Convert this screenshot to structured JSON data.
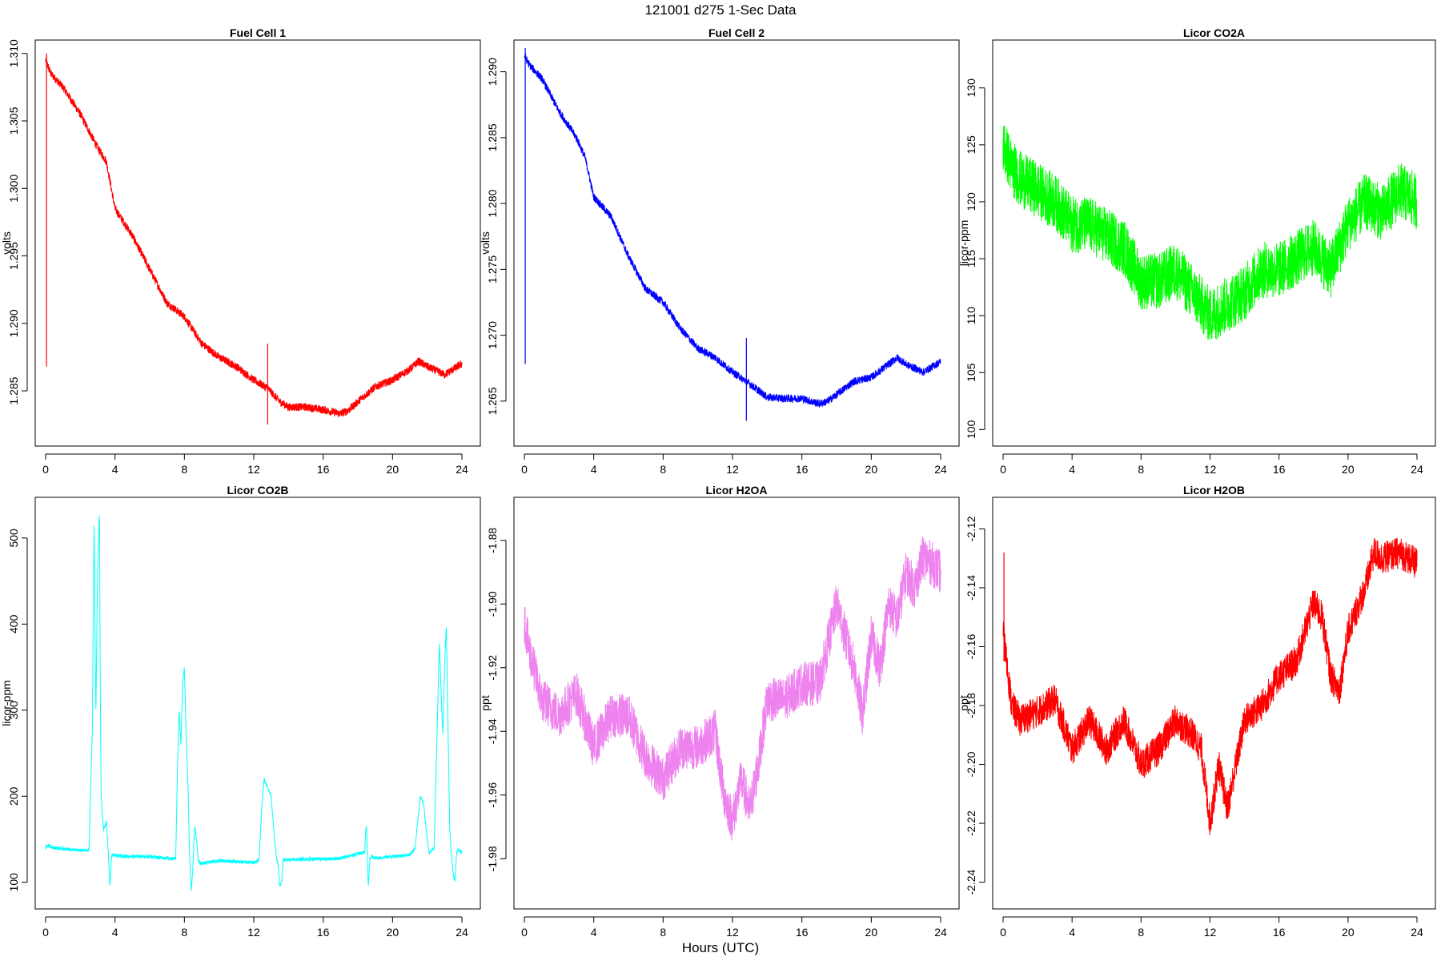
{
  "page": {
    "title": "121001   d275   1-Sec Data",
    "xlabel": "Hours (UTC)"
  },
  "chart_data": [
    {
      "type": "line",
      "title": "Fuel Cell 1",
      "ylabel": "volts",
      "color": "#ff0000",
      "xlim": [
        0,
        24
      ],
      "ylim": [
        1.2818,
        1.3104
      ],
      "xticks": [
        0,
        4,
        8,
        12,
        16,
        20,
        24
      ],
      "yticks": [
        1.285,
        1.29,
        1.295,
        1.3,
        1.305,
        1.31
      ],
      "ytick_labels": [
        "1.285",
        "1.290",
        "1.295",
        "1.300",
        "1.305",
        "1.310"
      ],
      "noise": 0.0006,
      "series": [
        {
          "x": [
            0,
            0.3,
            1,
            2,
            3,
            3.5,
            4,
            5,
            6,
            7,
            8,
            9,
            10,
            11,
            12,
            12.8,
            13.5,
            14,
            15,
            16,
            17,
            17.5,
            18,
            19,
            20,
            21,
            21.5,
            22,
            23,
            24
          ],
          "y": [
            1.3095,
            1.3085,
            1.3075,
            1.3055,
            1.303,
            1.302,
            1.2985,
            1.2965,
            1.294,
            1.2915,
            1.2905,
            1.2885,
            1.2875,
            1.2868,
            1.2858,
            1.2852,
            1.2842,
            1.2838,
            1.2838,
            1.2836,
            1.2833,
            1.2836,
            1.2842,
            1.2853,
            1.2858,
            1.2866,
            1.2872,
            1.2868,
            1.2862,
            1.287
          ]
        }
      ],
      "spikes": [
        {
          "x": 0.05,
          "ymin": 1.2868,
          "ymax": 1.31
        },
        {
          "x": 12.8,
          "ymin": 1.2825,
          "ymax": 1.2885
        }
      ]
    },
    {
      "type": "line",
      "title": "Fuel Cell 2",
      "ylabel": "volts",
      "color": "#0000ff",
      "xlim": [
        0,
        24
      ],
      "ylim": [
        1.2625,
        1.2918
      ],
      "xticks": [
        0,
        4,
        8,
        12,
        16,
        20,
        24
      ],
      "yticks": [
        1.265,
        1.27,
        1.275,
        1.28,
        1.285,
        1.29
      ],
      "ytick_labels": [
        "1.265",
        "1.270",
        "1.275",
        "1.280",
        "1.285",
        "1.290"
      ],
      "noise": 0.0006,
      "series": [
        {
          "x": [
            0,
            0.3,
            1,
            2,
            3,
            3.5,
            4,
            5,
            6,
            7,
            8,
            9,
            10,
            11,
            12,
            12.8,
            13.5,
            14,
            15,
            16,
            17,
            17.5,
            18,
            19,
            20,
            21,
            21.5,
            22,
            23,
            24
          ],
          "y": [
            1.2912,
            1.2905,
            1.2895,
            1.287,
            1.285,
            1.2835,
            1.2805,
            1.279,
            1.276,
            1.2735,
            1.2725,
            1.2705,
            1.269,
            1.2683,
            1.2672,
            1.2665,
            1.2658,
            1.2653,
            1.2652,
            1.2652,
            1.2648,
            1.265,
            1.2655,
            1.2665,
            1.2668,
            1.2678,
            1.2683,
            1.2678,
            1.2672,
            1.268
          ]
        }
      ],
      "spikes": [
        {
          "x": 0.05,
          "ymin": 1.2678,
          "ymax": 1.2918
        },
        {
          "x": 12.8,
          "ymin": 1.2635,
          "ymax": 1.2698
        }
      ]
    },
    {
      "type": "line",
      "title": "Licor CO2A",
      "ylabel": "licor-ppm",
      "color": "#00ff00",
      "xlim": [
        0,
        24
      ],
      "ylim": [
        99.6,
        133.5
      ],
      "xticks": [
        0,
        4,
        8,
        12,
        16,
        20,
        24
      ],
      "yticks": [
        100,
        105,
        110,
        115,
        120,
        125,
        130
      ],
      "ytick_labels": [
        "100",
        "105",
        "110",
        "115",
        "120",
        "125",
        "130"
      ],
      "noise": 5,
      "series": [
        {
          "x": [
            0,
            0.5,
            1,
            2,
            3,
            4,
            5,
            6,
            7,
            8,
            9,
            10,
            11,
            12,
            13,
            14,
            15,
            16,
            17,
            18,
            19,
            20,
            21,
            22,
            23,
            24
          ],
          "y": [
            125,
            123,
            122,
            121,
            120,
            118,
            118,
            117,
            116,
            113,
            113,
            114,
            112,
            110,
            111,
            112,
            114,
            114,
            115,
            116,
            114,
            118,
            120,
            119,
            121,
            120
          ]
        }
      ]
    },
    {
      "type": "line",
      "title": "Licor CO2B",
      "ylabel": "licor-ppm",
      "color": "#00ffff",
      "xlim": [
        0,
        24
      ],
      "ylim": [
        83,
        538
      ],
      "xticks": [
        0,
        4,
        8,
        12,
        16,
        20,
        24
      ],
      "yticks": [
        100,
        200,
        300,
        400,
        500
      ],
      "ytick_labels": [
        "100",
        "200",
        "300",
        "400",
        "500"
      ],
      "noise": 4,
      "series": [
        {
          "x": [
            0,
            0.1,
            0.5,
            1,
            1.5,
            2,
            2.5,
            2.6,
            2.7,
            2.75,
            2.8,
            2.85,
            2.9,
            3.0,
            3.1,
            3.15,
            3.2,
            3.3,
            3.35,
            3.4,
            3.5,
            3.6,
            3.7,
            3.8,
            3.9,
            4.0,
            5,
            6,
            7,
            7.3,
            7.5,
            7.6,
            7.7,
            7.8,
            7.9,
            8.0,
            8.1,
            8.2,
            8.3,
            8.35,
            8.4,
            8.5,
            8.55,
            8.6,
            8.7,
            8.8,
            8.9,
            9,
            10,
            11,
            12,
            12.3,
            12.5,
            12.6,
            12.8,
            13.0,
            13.2,
            13.3,
            13.4,
            13.5,
            13.6,
            13.7,
            13.8,
            13.9,
            14.0,
            15,
            16,
            17,
            18,
            18.4,
            18.45,
            18.5,
            18.6,
            18.7,
            18.8,
            19,
            20,
            21,
            21.3,
            21.5,
            21.6,
            21.8,
            22.0,
            22.1,
            22.2,
            22.4,
            22.6,
            22.7,
            22.8,
            22.9,
            23.0,
            23.1,
            23.2,
            23.3,
            23.4,
            23.5,
            23.6,
            23.7,
            23.8,
            23.9,
            24
          ],
          "y": [
            140,
            143,
            140,
            139,
            138,
            137,
            137,
            210,
            280,
            430,
            520,
            380,
            300,
            470,
            530,
            330,
            200,
            170,
            160,
            165,
            170,
            140,
            95,
            130,
            132,
            131,
            130,
            130,
            128,
            127,
            128,
            230,
            300,
            260,
            330,
            350,
            270,
            220,
            130,
            110,
            90,
            120,
            150,
            165,
            150,
            125,
            122,
            122,
            125,
            124,
            123,
            126,
            200,
            220,
            210,
            200,
            150,
            130,
            120,
            95,
            100,
            125,
            127,
            126,
            126,
            127,
            127,
            128,
            133,
            135,
            160,
            165,
            95,
            128,
            130,
            128,
            130,
            132,
            140,
            180,
            200,
            190,
            150,
            135,
            136,
            140,
            300,
            380,
            320,
            270,
            350,
            400,
            280,
            160,
            130,
            110,
            100,
            135,
            138,
            136,
            135
          ]
        }
      ]
    },
    {
      "type": "line",
      "title": "Licor H2OA",
      "ylabel": "ppt",
      "color": "#ee82ee",
      "xlim": [
        0,
        24
      ],
      "ylim": [
        -1.992,
        -1.869
      ],
      "xticks": [
        0,
        4,
        8,
        12,
        16,
        20,
        24
      ],
      "yticks": [
        -1.98,
        -1.96,
        -1.94,
        -1.92,
        -1.9,
        -1.88
      ],
      "ytick_labels": [
        "-1.98",
        "-1.96",
        "-1.94",
        "-1.92",
        "-1.90",
        "-1.88"
      ],
      "noise": 0.014,
      "series": [
        {
          "x": [
            0,
            0.3,
            1,
            2,
            3,
            4,
            5,
            6,
            7,
            8,
            9,
            10,
            11,
            11.5,
            12,
            12.5,
            13,
            13.5,
            14,
            15,
            16,
            17,
            18,
            18.5,
            19,
            19.5,
            20,
            20.5,
            21,
            21.5,
            22,
            22.5,
            23,
            24
          ],
          "y": [
            -1.905,
            -1.915,
            -1.93,
            -1.935,
            -1.928,
            -1.945,
            -1.935,
            -1.935,
            -1.948,
            -1.955,
            -1.945,
            -1.945,
            -1.94,
            -1.96,
            -1.968,
            -1.955,
            -1.965,
            -1.95,
            -1.93,
            -1.93,
            -1.925,
            -1.925,
            -1.9,
            -1.91,
            -1.92,
            -1.935,
            -1.91,
            -1.92,
            -1.9,
            -1.905,
            -1.89,
            -1.895,
            -1.885,
            -1.89
          ]
        }
      ]
    },
    {
      "type": "line",
      "title": "Licor H2OB",
      "ylabel": "ppt",
      "color": "#ff0000",
      "xlim": [
        0,
        24
      ],
      "ylim": [
        -2.245,
        -2.112
      ],
      "xticks": [
        0,
        4,
        8,
        12,
        16,
        20,
        24
      ],
      "yticks": [
        -2.24,
        -2.22,
        -2.2,
        -2.18,
        -2.16,
        -2.14,
        -2.12
      ],
      "ytick_labels": [
        "-2.24",
        "-2.22",
        "-2.20",
        "-2.18",
        "-2.16",
        "-2.14",
        "-2.12"
      ],
      "noise": 0.011,
      "series": [
        {
          "x": [
            0,
            0.2,
            0.5,
            1,
            2,
            3,
            4,
            5,
            6,
            7,
            8,
            9,
            10,
            11,
            11.5,
            12,
            12.5,
            13,
            13.5,
            14,
            15,
            16,
            17,
            18,
            18.5,
            19,
            19.5,
            20,
            21,
            21.5,
            22,
            23,
            24
          ],
          "y": [
            -2.155,
            -2.165,
            -2.18,
            -2.185,
            -2.182,
            -2.178,
            -2.195,
            -2.185,
            -2.195,
            -2.185,
            -2.2,
            -2.195,
            -2.185,
            -2.19,
            -2.195,
            -2.22,
            -2.2,
            -2.215,
            -2.2,
            -2.185,
            -2.18,
            -2.17,
            -2.165,
            -2.145,
            -2.15,
            -2.17,
            -2.175,
            -2.155,
            -2.14,
            -2.128,
            -2.13,
            -2.128,
            -2.132
          ]
        }
      ],
      "spikes": [
        {
          "x": 0.05,
          "ymin": -2.165,
          "ymax": -2.128
        }
      ]
    }
  ]
}
